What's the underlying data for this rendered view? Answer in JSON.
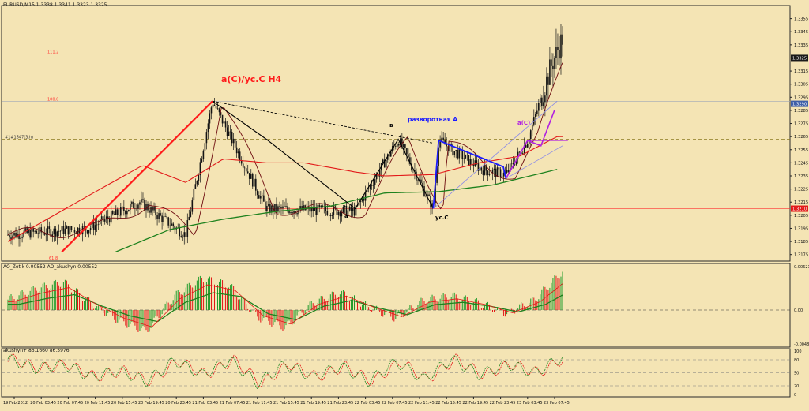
{
  "window": {
    "title": "EURUSD,M15  1.3338 1.3341 1.3323 1.3325"
  },
  "colors": {
    "background": "#f4e4b4",
    "candle": "#141414",
    "ma_fast": "#6e0c10",
    "ma_mid": "#e21a1a",
    "ma_slow": "#1e821e",
    "wave_black": "#000000",
    "wave_red": "#ff1a1a",
    "wave_blue": "#1a1aff",
    "wave_violet": "#b020e0",
    "fan_line": "#8a8ae8",
    "level_red": "#ff3030",
    "level_grey": "#9fa6b8",
    "ao_up": "#1f9b2a",
    "ao_down": "#e21616",
    "price_label_bg": "#1a1a1a",
    "blue_label_bg": "#3e5fa8",
    "red_label_bg": "#e21a1a"
  },
  "main_panel": {
    "price_axis": [
      "1.3355",
      "1.3345",
      "1.3335",
      "1.3325",
      "1.3315",
      "1.3305",
      "1.3295",
      "1.3285",
      "1.3275",
      "1.3265",
      "1.3255",
      "1.3245",
      "1.3235",
      "1.3225",
      "1.3215",
      "1.3205",
      "1.3195",
      "1.3185",
      "1.3175"
    ],
    "current_price_label": "1.3325",
    "fib_labels": {
      "top": "111.2",
      "mid": "100.0",
      "bottom": "61.8",
      "level_dash": "#1#1547(3.h)"
    },
    "level_labels": {
      "blue": "1.3290",
      "red": "1.3210"
    },
    "annotations": {
      "main_label": "a(C)/ус.C H4",
      "reversal_label": "разворотная А",
      "b_label": "в",
      "a_label": "а",
      "c_label": "ус.C",
      "ac_label": "a(C)"
    }
  },
  "ao_panel": {
    "header": "AO_Zotik 0.00552  AO_akushyn 0.00552",
    "axis": [
      "0.00621",
      "0.00",
      "-0.00484"
    ]
  },
  "osc_panel": {
    "header": "akushyn+ 86.1660 86.5976",
    "axis": [
      "100",
      "80",
      "50",
      "20",
      "0"
    ]
  },
  "time_axis": [
    "19 Feb 2012",
    "20 Feb 03:45",
    "20 Feb 07:45",
    "20 Feb 11:45",
    "20 Feb 15:45",
    "20 Feb 19:45",
    "20 Feb 23:45",
    "21 Feb 03:45",
    "21 Feb 07:45",
    "21 Feb 11:45",
    "21 Feb 15:45",
    "21 Feb 19:45",
    "21 Feb 23:45",
    "22 Feb 03:45",
    "22 Feb 07:45",
    "22 Feb 11:45",
    "22 Feb 15:45",
    "22 Feb 19:45",
    "22 Feb 23:45",
    "23 Feb 03:45",
    "23 Feb 07:45"
  ],
  "chart_data": {
    "type": "line",
    "symbol": "EURUSD",
    "timeframe": "M15",
    "ylim": [
      1.317,
      1.3365
    ],
    "key_points": {
      "x": [
        0,
        3,
        4.9,
        6.6,
        7.6,
        9.6,
        12.9,
        14.5,
        15.8,
        16.0,
        17.6,
        18.5,
        19.3,
        20.2,
        20.6
      ],
      "y": [
        1.319,
        1.3195,
        1.3215,
        1.319,
        1.3292,
        1.321,
        1.3208,
        1.3263,
        1.321,
        1.3262,
        1.324,
        1.3236,
        1.3262,
        1.332,
        1.334
      ]
    },
    "ma_mid_points": {
      "x": [
        0,
        3,
        5,
        6.6,
        8,
        9.6,
        11,
        12.9,
        14,
        15.8,
        17.5,
        19,
        20.4
      ],
      "y": [
        1.3185,
        1.322,
        1.3243,
        1.323,
        1.3248,
        1.3245,
        1.3245,
        1.3238,
        1.3235,
        1.3236,
        1.3245,
        1.325,
        1.3265
      ]
    },
    "ma_slow_points": {
      "x": [
        4,
        6,
        8,
        10,
        12,
        14,
        16,
        18,
        20.4
      ],
      "y": [
        1.3177,
        1.3194,
        1.3202,
        1.3208,
        1.3212,
        1.3222,
        1.3223,
        1.3228,
        1.324
      ]
    },
    "levels": [
      {
        "name": "111.2",
        "price": 1.3328
      },
      {
        "name": "1.3325",
        "price": 1.3325
      },
      {
        "name": "1.3290",
        "price": 1.329
      },
      {
        "name": "100.0",
        "price": 1.3292
      },
      {
        "name": "1.3263",
        "price": 1.3263
      },
      {
        "name": "1.3210",
        "price": 1.321
      }
    ],
    "waves": {
      "red_impulse": {
        "x": [
          2.0,
          7.6
        ],
        "y": [
          1.3177,
          1.3292
        ]
      },
      "black_abc": {
        "x": [
          7.6,
          9.6,
          12.9,
          14.5,
          15.8
        ],
        "y": [
          1.3292,
          1.3263,
          1.321,
          1.3263,
          1.321
        ]
      },
      "black_dashed": {
        "x": [
          7.6,
          15.8
        ],
        "y": [
          1.3292,
          1.326
        ]
      },
      "blue_reversal": {
        "x": [
          15.8,
          16.0,
          18.4,
          18.5
        ],
        "y": [
          1.321,
          1.3262,
          1.3242,
          1.3233
        ]
      },
      "violet_ac": {
        "x": [
          18.5,
          19.3,
          19.8,
          20.3
        ],
        "y": [
          1.3233,
          1.3262,
          1.3258,
          1.3285
        ]
      }
    },
    "ao_values_sample": [
      0.0015,
      0.003,
      0.004,
      0.001,
      -0.0015,
      -0.003,
      0.002,
      0.0045,
      0.0035,
      -0.001,
      -0.0025,
      0.001,
      0.0025,
      0.0005,
      -0.0012,
      0.0014,
      0.002,
      0.001,
      -0.0005,
      0.0015,
      0.0055
    ],
    "osc_values_sample": [
      82,
      60,
      70,
      40,
      55,
      30,
      78,
      45,
      80,
      25,
      70,
      40,
      65,
      30,
      75,
      35,
      82,
      45,
      70,
      50,
      86
    ]
  }
}
